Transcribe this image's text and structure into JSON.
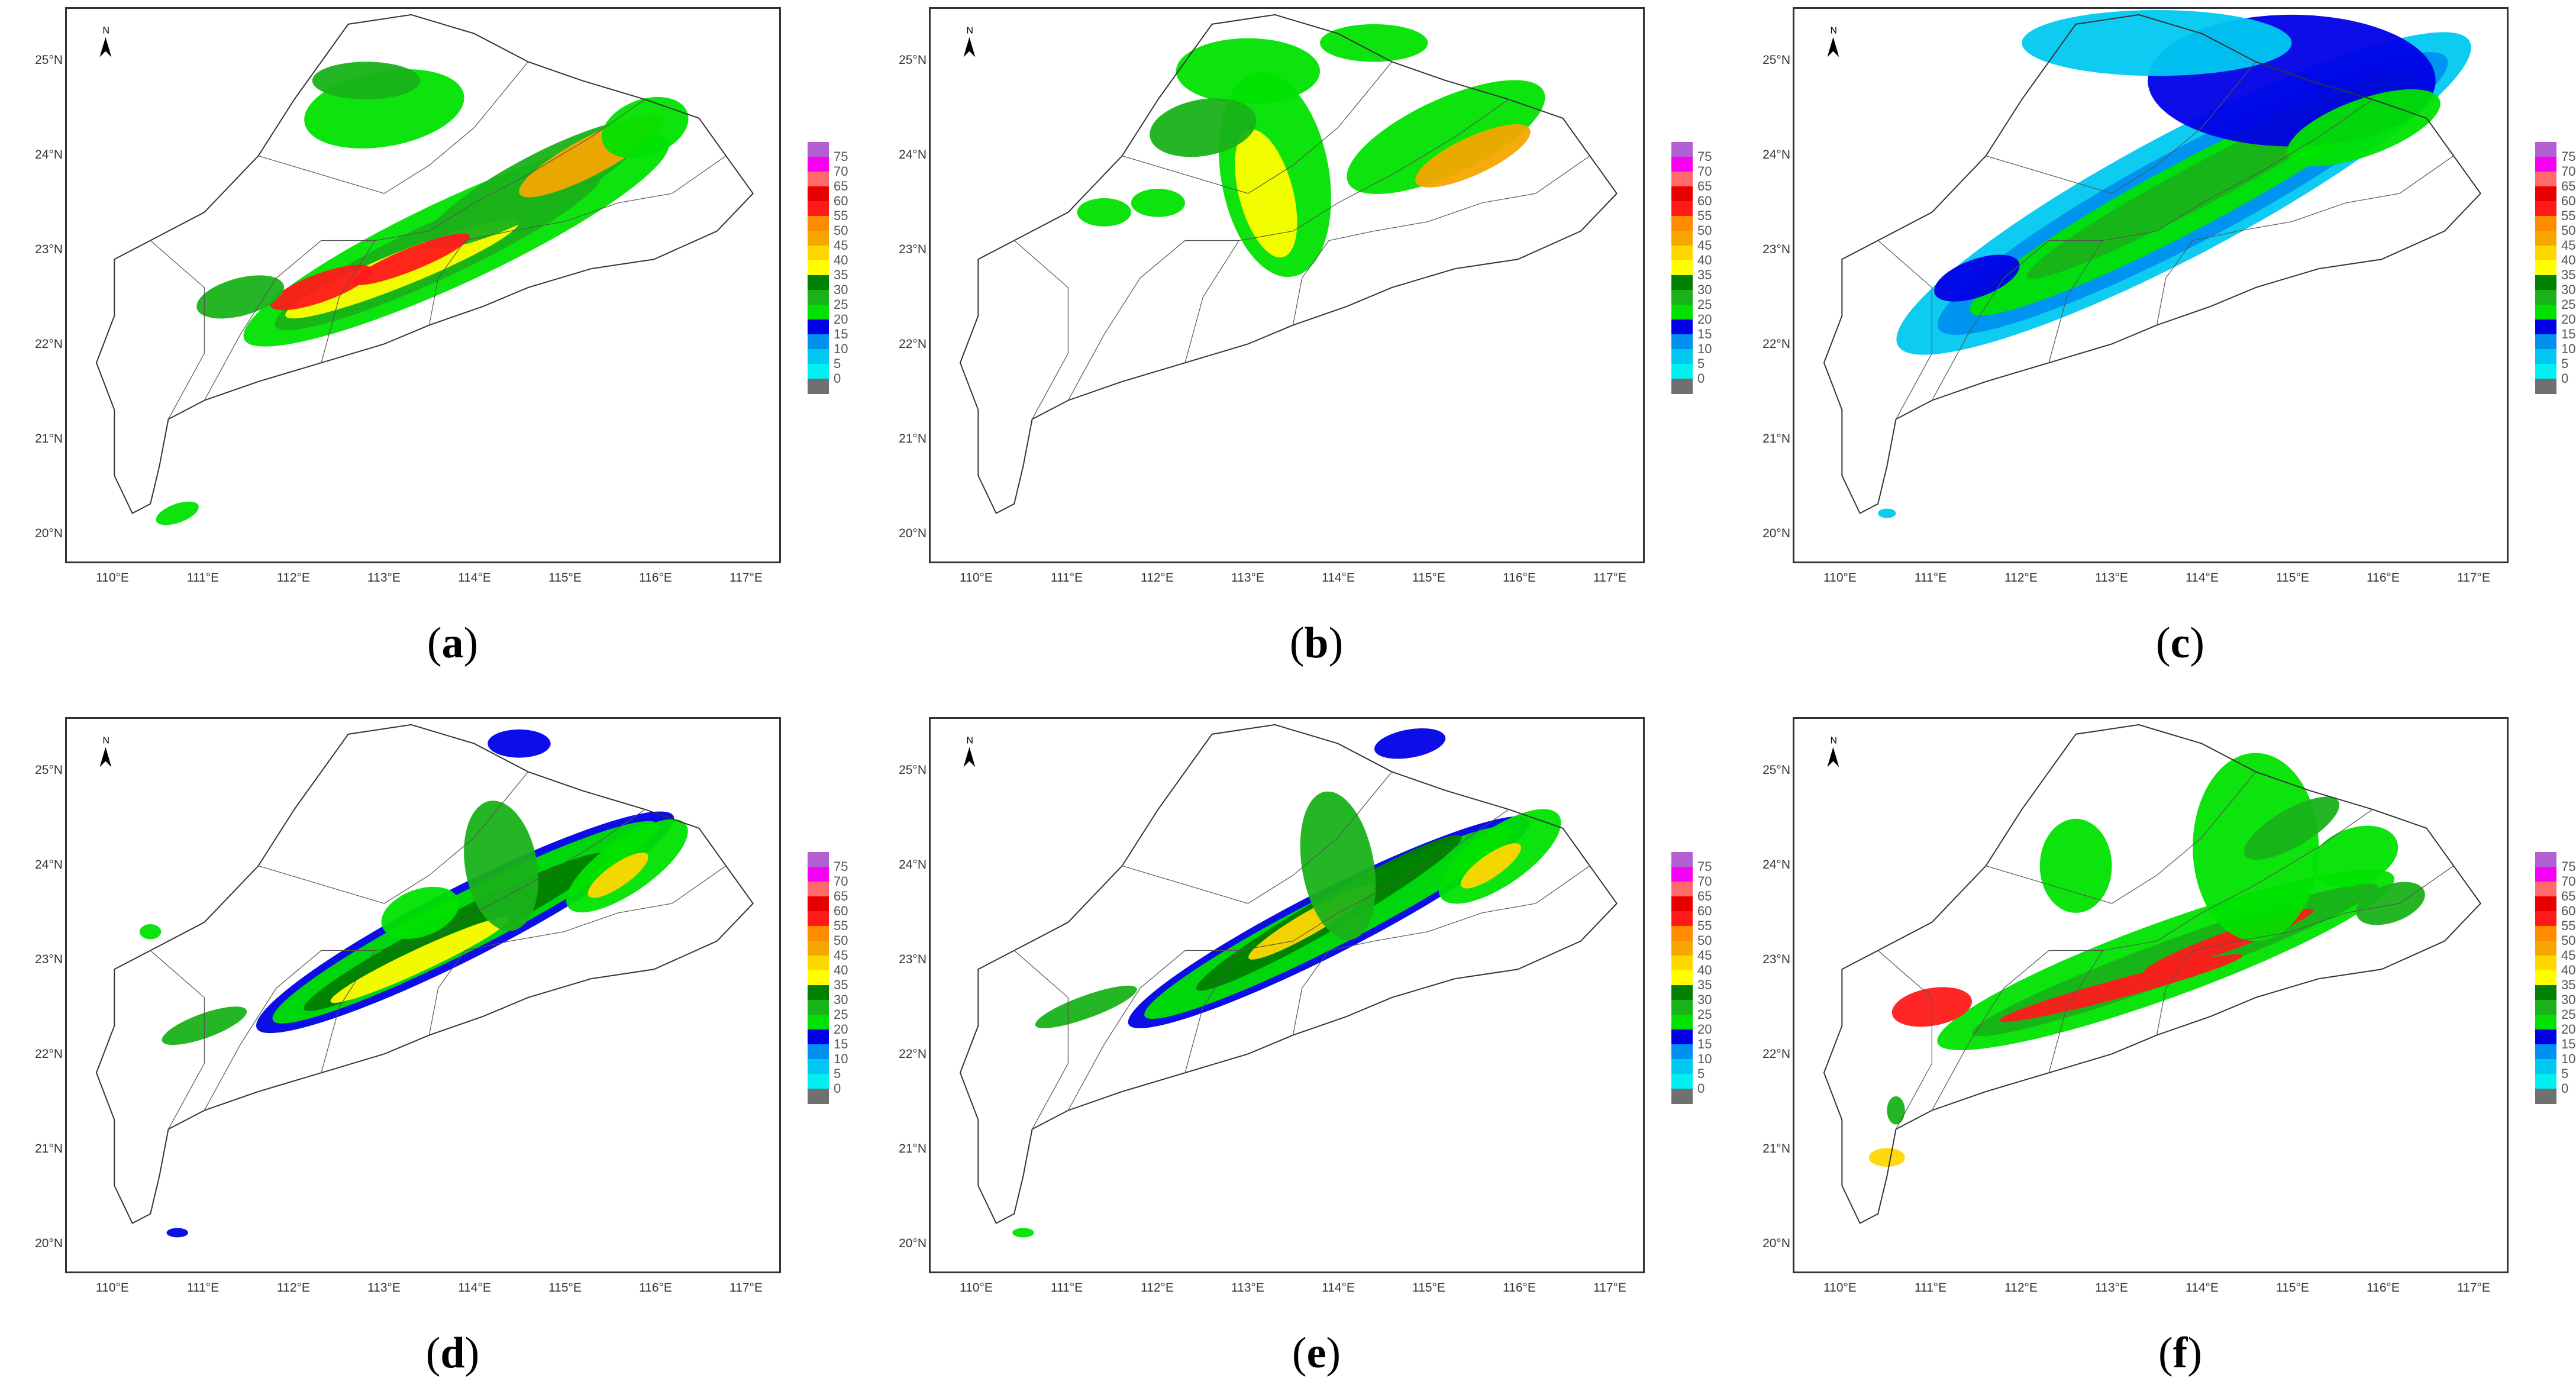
{
  "latitude_ticks": [
    "25°N",
    "24°N",
    "23°N",
    "22°N",
    "21°N",
    "20°N"
  ],
  "longitude_ticks": [
    "110°E",
    "111°E",
    "112°E",
    "113°E",
    "114°E",
    "115°E",
    "116°E",
    "117°E"
  ],
  "north_arrow": {
    "icon": "north-arrow-icon",
    "label": "N"
  },
  "colorbar": {
    "values": [
      "75",
      "70",
      "65",
      "60",
      "55",
      "50",
      "45",
      "40",
      "35",
      "30",
      "25",
      "20",
      "15",
      "10",
      "5",
      "0"
    ],
    "colors": [
      "#b25fd4",
      "#f400f4",
      "#ff6b6b",
      "#e80000",
      "#ff1a1a",
      "#ff8c00",
      "#f5a700",
      "#ffd700",
      "#ffff00",
      "#007f00",
      "#19b219",
      "#00e100",
      "#0000e6",
      "#0090f0",
      "#00c8f0",
      "#00f0f0",
      "#707070"
    ]
  },
  "panels": [
    {
      "id": "a",
      "caption_open": "(",
      "caption_letter": "a",
      "caption_close": ")"
    },
    {
      "id": "b",
      "caption_open": "(",
      "caption_letter": "b",
      "caption_close": ")"
    },
    {
      "id": "c",
      "caption_open": "(",
      "caption_letter": "c",
      "caption_close": ")"
    },
    {
      "id": "d",
      "caption_open": "(",
      "caption_letter": "d",
      "caption_close": ")"
    },
    {
      "id": "e",
      "caption_open": "(",
      "caption_letter": "e",
      "caption_close": ")"
    },
    {
      "id": "f",
      "caption_open": "(",
      "caption_letter": "f",
      "caption_close": ")"
    }
  ]
}
